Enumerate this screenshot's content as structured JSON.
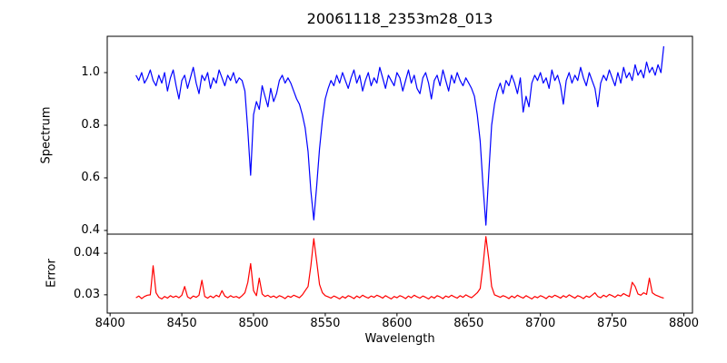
{
  "title": "20061118_2353m28_013",
  "chart_data": {
    "type": "line",
    "title": "20061118_2353m28_013",
    "xlabel": "Wavelength",
    "grid": false,
    "legend": "none",
    "xlim": [
      8398,
      8806
    ],
    "xticks": [
      8400,
      8450,
      8500,
      8550,
      8600,
      8650,
      8700,
      8750,
      8800
    ],
    "xtick_labels": [
      "8400",
      "8450",
      "8500",
      "8550",
      "8600",
      "8650",
      "8700",
      "8750",
      "8800"
    ],
    "axis_color": "#000000",
    "panels": [
      {
        "name": "spectrum",
        "ylabel": "Spectrum",
        "ylim": [
          0.386,
          1.138
        ],
        "yticks": [
          1.0,
          0.8,
          0.6,
          0.4
        ],
        "ytick_labels": [
          "1.0",
          "0.8",
          "0.6",
          "0.4"
        ],
        "series": [
          {
            "name": "spectrum-flux",
            "color": "#0000ff",
            "x_start": 8418,
            "x_step": 2,
            "values": [
              0.99,
              0.97,
              1.0,
              0.96,
              0.98,
              1.01,
              0.97,
              0.95,
              0.99,
              0.96,
              1.0,
              0.93,
              0.98,
              1.01,
              0.95,
              0.9,
              0.97,
              0.99,
              0.94,
              0.98,
              1.02,
              0.96,
              0.92,
              0.99,
              0.97,
              1.0,
              0.94,
              0.98,
              0.96,
              1.01,
              0.98,
              0.95,
              0.99,
              0.97,
              1.0,
              0.96,
              0.98,
              0.97,
              0.93,
              0.78,
              0.61,
              0.84,
              0.89,
              0.86,
              0.95,
              0.91,
              0.87,
              0.94,
              0.89,
              0.92,
              0.97,
              0.99,
              0.96,
              0.98,
              0.96,
              0.93,
              0.9,
              0.88,
              0.84,
              0.79,
              0.7,
              0.55,
              0.44,
              0.57,
              0.71,
              0.82,
              0.9,
              0.94,
              0.97,
              0.95,
              0.99,
              0.96,
              1.0,
              0.97,
              0.94,
              0.98,
              1.01,
              0.96,
              0.99,
              0.93,
              0.97,
              1.0,
              0.95,
              0.98,
              0.96,
              1.02,
              0.98,
              0.94,
              0.99,
              0.97,
              0.95,
              1.0,
              0.98,
              0.93,
              0.97,
              1.01,
              0.96,
              0.99,
              0.94,
              0.92,
              0.98,
              1.0,
              0.96,
              0.9,
              0.97,
              0.99,
              0.95,
              1.01,
              0.97,
              0.93,
              0.99,
              0.96,
              1.0,
              0.97,
              0.95,
              0.98,
              0.96,
              0.94,
              0.91,
              0.84,
              0.74,
              0.57,
              0.42,
              0.62,
              0.8,
              0.88,
              0.93,
              0.96,
              0.92,
              0.97,
              0.95,
              0.99,
              0.96,
              0.92,
              0.98,
              0.85,
              0.91,
              0.87,
              0.96,
              0.99,
              0.97,
              1.0,
              0.96,
              0.98,
              0.94,
              1.01,
              0.97,
              0.99,
              0.95,
              0.88,
              0.97,
              1.0,
              0.96,
              0.99,
              0.97,
              1.02,
              0.98,
              0.95,
              1.0,
              0.97,
              0.94,
              0.87,
              0.96,
              0.99,
              0.97,
              1.01,
              0.98,
              0.95,
              1.0,
              0.96,
              1.02,
              0.98,
              1.0,
              0.97,
              1.03,
              0.99,
              1.01,
              0.98,
              1.04,
              1.0,
              1.02,
              0.99,
              1.03,
              1.0,
              1.1
            ]
          }
        ]
      },
      {
        "name": "error",
        "ylabel": "Error",
        "ylim": [
          0.0256,
          0.0446
        ],
        "yticks": [
          0.04,
          0.03
        ],
        "ytick_labels": [
          "0.04",
          "0.03"
        ],
        "series": [
          {
            "name": "error-level",
            "color": "#ff0000",
            "x_start": 8418,
            "x_step": 2,
            "values": [
              0.0293,
              0.0297,
              0.0291,
              0.0296,
              0.0299,
              0.03,
              0.037,
              0.0305,
              0.0294,
              0.029,
              0.0296,
              0.0292,
              0.0298,
              0.0294,
              0.0297,
              0.0293,
              0.0299,
              0.032,
              0.0295,
              0.0291,
              0.0297,
              0.0294,
              0.0299,
              0.0335,
              0.0296,
              0.0292,
              0.0297,
              0.0293,
              0.0299,
              0.0295,
              0.031,
              0.0297,
              0.0293,
              0.0298,
              0.0294,
              0.0296,
              0.0292,
              0.0298,
              0.0305,
              0.033,
              0.0375,
              0.031,
              0.0298,
              0.034,
              0.0302,
              0.0296,
              0.0299,
              0.0294,
              0.0297,
              0.0293,
              0.0298,
              0.0295,
              0.0291,
              0.0297,
              0.0294,
              0.0299,
              0.0296,
              0.0293,
              0.03,
              0.031,
              0.032,
              0.037,
              0.0435,
              0.038,
              0.0325,
              0.0305,
              0.0298,
              0.0295,
              0.0292,
              0.0297,
              0.0294,
              0.029,
              0.0296,
              0.0292,
              0.0298,
              0.0295,
              0.0291,
              0.0297,
              0.0293,
              0.0299,
              0.0295,
              0.0292,
              0.0297,
              0.0294,
              0.0299,
              0.0296,
              0.0292,
              0.0298,
              0.0294,
              0.029,
              0.0296,
              0.0293,
              0.0298,
              0.0295,
              0.0291,
              0.0297,
              0.0293,
              0.0299,
              0.0295,
              0.0292,
              0.0297,
              0.0294,
              0.029,
              0.0296,
              0.0292,
              0.0298,
              0.0295,
              0.0291,
              0.0297,
              0.0294,
              0.0299,
              0.0295,
              0.0292,
              0.0298,
              0.0294,
              0.03,
              0.0296,
              0.0293,
              0.0299,
              0.0305,
              0.0315,
              0.037,
              0.044,
              0.0385,
              0.032,
              0.03,
              0.0297,
              0.0294,
              0.0298,
              0.0295,
              0.0291,
              0.0297,
              0.0293,
              0.0299,
              0.0295,
              0.0292,
              0.0298,
              0.0294,
              0.029,
              0.0296,
              0.0293,
              0.0298,
              0.0295,
              0.0291,
              0.0297,
              0.0294,
              0.0299,
              0.0296,
              0.0292,
              0.0298,
              0.0294,
              0.03,
              0.0296,
              0.0292,
              0.0298,
              0.0295,
              0.0291,
              0.0297,
              0.0294,
              0.0299,
              0.0305,
              0.0296,
              0.0293,
              0.0299,
              0.0295,
              0.0301,
              0.0298,
              0.0294,
              0.03,
              0.0297,
              0.0303,
              0.0299,
              0.0296,
              0.033,
              0.032,
              0.0302,
              0.0299,
              0.0305,
              0.0301,
              0.034,
              0.0305,
              0.03,
              0.0297,
              0.0294,
              0.0292
            ]
          }
        ]
      }
    ]
  }
}
